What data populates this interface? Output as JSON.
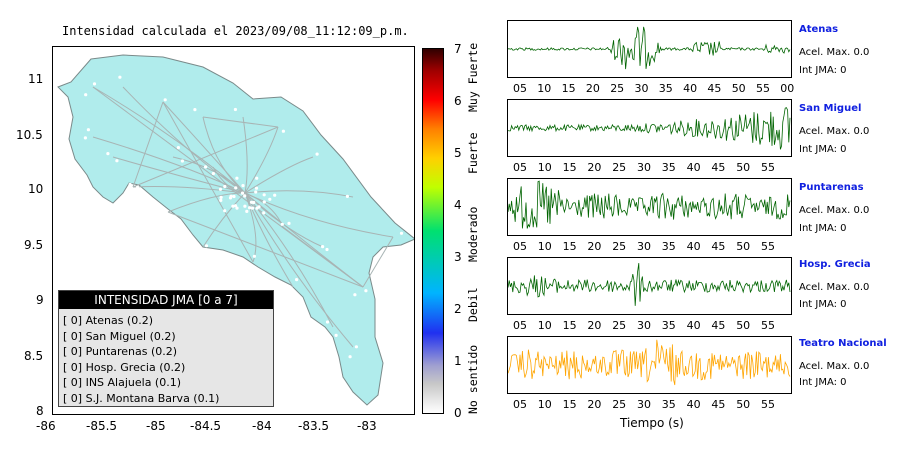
{
  "map": {
    "title": "Intensidad calculada el 2023/09/08_11:12:09_p.m.",
    "xticks": [
      "-86",
      "-85.5",
      "-85",
      "-84.5",
      "-84",
      "-83.5",
      "-83"
    ],
    "yticks": [
      "11",
      "10.5",
      "10",
      "9.5",
      "9",
      "8.5",
      "8"
    ],
    "land_color": "#b0ecec",
    "road_color": "#a8b4b4"
  },
  "legend": {
    "title": "INTENSIDAD JMA [0 a 7]",
    "items": [
      {
        "text": "[ 0]  Atenas (0.2)"
      },
      {
        "text": "[ 0]  San Miguel (0.2)"
      },
      {
        "text": "[ 0]  Puntarenas (0.2)"
      },
      {
        "text": "[ 0]  Hosp. Grecia (0.2)"
      },
      {
        "text": "[ 0]  INS Alajuela (0.1)"
      },
      {
        "text": "[ 0]  S.J. Montana Barva (0.1)"
      }
    ]
  },
  "colorbar": {
    "ticks": [
      "7",
      "6",
      "5",
      "4",
      "3",
      "2",
      "1",
      "0"
    ],
    "classes": [
      "No sentido",
      "Debil",
      "Moderado",
      "Fuerte",
      "Muy Fuerte"
    ]
  },
  "stations": [
    {
      "name": "Atenas",
      "accel": "Acel. Max. 0.0",
      "int": "Int JMA: 0",
      "color": "#006400"
    },
    {
      "name": "San Miguel",
      "accel": "Acel. Max. 0.0",
      "int": "Int JMA: 0",
      "color": "#006400"
    },
    {
      "name": "Puntarenas",
      "accel": "Acel. Max. 0.0",
      "int": "Int JMA: 0",
      "color": "#006400"
    },
    {
      "name": "Hosp. Grecia",
      "accel": "Acel. Max. 0.0",
      "int": "Int JMA: 0",
      "color": "#006400"
    },
    {
      "name": "Teatro Nacional",
      "accel": "Acel. Max. 0.0",
      "int": "Int JMA: 0",
      "color": "#ffa500"
    }
  ],
  "time_axis": {
    "xlabel": "Tiempo (s)",
    "panels": [
      {
        "ticks": [
          "05",
          "10",
          "15",
          "20",
          "25",
          "30",
          "35",
          "40",
          "45",
          "50",
          "55",
          "00"
        ]
      },
      {
        "ticks": [
          "05",
          "10",
          "15",
          "20",
          "25",
          "30",
          "35",
          "40",
          "45",
          "50",
          "55"
        ]
      },
      {
        "ticks": [
          "05",
          "10",
          "15",
          "20",
          "25",
          "30",
          "35",
          "40",
          "45",
          "50",
          "55"
        ]
      },
      {
        "ticks": [
          "05",
          "10",
          "15",
          "20",
          "25",
          "30",
          "35",
          "40",
          "45",
          "50",
          "55"
        ]
      },
      {
        "ticks": [
          "05",
          "10",
          "15",
          "20",
          "25",
          "30",
          "35",
          "40",
          "45",
          "50",
          "55"
        ]
      }
    ]
  },
  "chart_data": [
    {
      "type": "scatter",
      "title": "Intensidad calculada el 2023/09/08_11:12:09_p.m.",
      "xlim": [
        -86,
        -82.6
      ],
      "ylim": [
        8,
        11.3
      ],
      "legend_title": "INTENSIDAD JMA [0 a 7]",
      "legend_position": "bottom-left",
      "stations": [
        {
          "label": "[ 0]  Atenas (0.2)"
        },
        {
          "label": "[ 0]  San Miguel (0.2)"
        },
        {
          "label": "[ 0]  Puntarenas (0.2)"
        },
        {
          "label": "[ 0]  Hosp. Grecia (0.2)"
        },
        {
          "label": "[ 0]  INS Alajuela (0.1)"
        },
        {
          "label": "[ 0]  S.J. Montana Barva (0.1)"
        }
      ],
      "colorbar": {
        "range": [
          0,
          7
        ],
        "classes": [
          "No sentido",
          "Debil",
          "Moderado",
          "Fuerte",
          "Muy Fuerte"
        ]
      }
    },
    {
      "type": "line",
      "xlabel": "Tiempo (s)",
      "series": [
        {
          "name": "Atenas",
          "max_accel": 0.0,
          "jma": 0,
          "color": "#006400"
        },
        {
          "name": "San Miguel",
          "max_accel": 0.0,
          "jma": 0,
          "color": "#006400"
        },
        {
          "name": "Puntarenas",
          "max_accel": 0.0,
          "jma": 0,
          "color": "#006400"
        },
        {
          "name": "Hosp. Grecia",
          "max_accel": 0.0,
          "jma": 0,
          "color": "#006400"
        },
        {
          "name": "Teatro Nacional",
          "max_accel": 0.0,
          "jma": 0,
          "color": "#ffa500"
        }
      ]
    }
  ]
}
